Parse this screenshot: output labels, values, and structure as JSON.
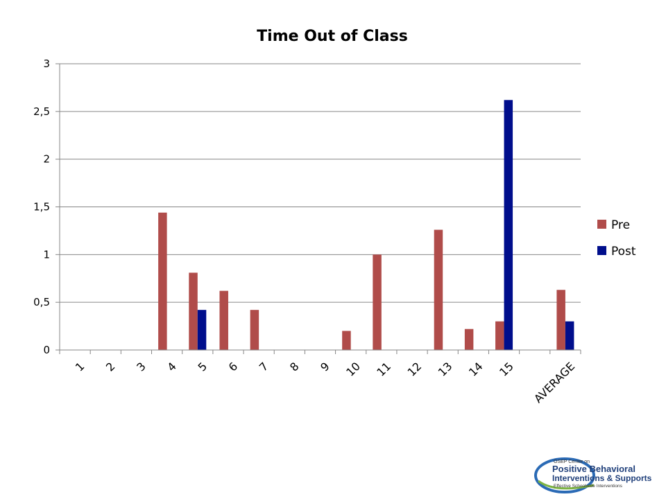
{
  "chart_data": {
    "type": "bar",
    "title": "Time Out of Class",
    "categories": [
      "1",
      "2",
      "3",
      "4",
      "5",
      "6",
      "7",
      "8",
      "9",
      "10",
      "11",
      "12",
      "13",
      "14",
      "15",
      "",
      "AVERAGE"
    ],
    "series": [
      {
        "name": "Pre",
        "color": "#b04c4a",
        "values": [
          0,
          0,
          0,
          1.44,
          0.81,
          0.62,
          0.42,
          0,
          0,
          0.2,
          1.0,
          0,
          1.26,
          0.22,
          0.3,
          0,
          0.63
        ]
      },
      {
        "name": "Post",
        "color": "#000e8c",
        "values": [
          0,
          0,
          0,
          0,
          0.42,
          0,
          0,
          0,
          0,
          0,
          0,
          0,
          0,
          0,
          2.62,
          0,
          0.3
        ]
      }
    ],
    "yticks": [
      "0",
      "0,5",
      "1",
      "1,5",
      "2",
      "2,5",
      "3"
    ],
    "ylim": [
      0,
      3
    ],
    "grid": true,
    "legend": "right"
  },
  "logo": {
    "line1": "OSEP Center on",
    "line2": "Positive Behavioral",
    "line3": "Interventions & Supports",
    "line4": "Effective Schoolwide Interventions"
  }
}
